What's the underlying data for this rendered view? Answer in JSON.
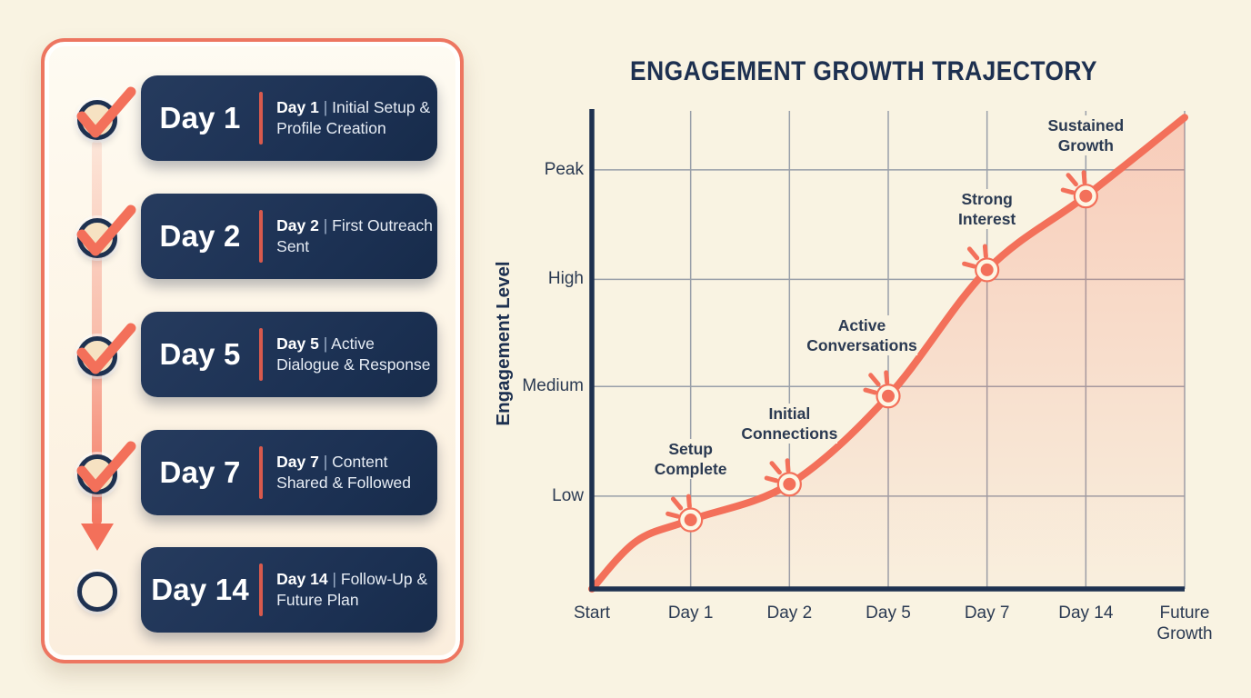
{
  "colors": {
    "background": "#f9f3e2",
    "panel_border": "#ed7661",
    "card_navy": "#1e3455",
    "accent_coral": "#f3705a",
    "divider_red": "#d85a4d",
    "axis_navy": "#1e3150",
    "grid_gray": "#999fa9",
    "text_navy": "#2b3a52",
    "circle_fill_checked": "#f6e2c2"
  },
  "checklist": {
    "separator": "|",
    "items": [
      {
        "day": "Day 1",
        "title": "Initial Setup & Profile Creation",
        "checked": true
      },
      {
        "day": "Day 2",
        "title": "First Outreach Sent",
        "checked": true
      },
      {
        "day": "Day 5",
        "title": "Active Dialogue & Response",
        "checked": true
      },
      {
        "day": "Day 7",
        "title": "Content Shared & Followed",
        "checked": true
      },
      {
        "day": "Day 14",
        "title": "Follow-Up & Future Plan",
        "checked": false
      }
    ]
  },
  "chart_data": {
    "type": "line",
    "title": "ENGAGEMENT GROWTH TRAJECTORY",
    "xlabel": "",
    "ylabel": "Engagement Level",
    "x_categories": [
      "Start",
      "Day 1",
      "Day 2",
      "Day 5",
      "Day 7",
      "Day 14",
      "Future Growth"
    ],
    "y_ticks": [
      {
        "label": "Low",
        "value": 19.5
      },
      {
        "label": "Medium",
        "value": 42.5
      },
      {
        "label": "High",
        "value": 65
      },
      {
        "label": "Peak",
        "value": 88
      }
    ],
    "y_range": [
      0,
      100
    ],
    "grid": true,
    "legend": "none",
    "line_color": "#f3705a",
    "series": [
      {
        "name": "Engagement",
        "points": [
          {
            "x": 0,
            "value": 0
          },
          {
            "x": 0.45,
            "value": 10,
            "curve_helper": true
          },
          {
            "x": 1,
            "value": 14.5,
            "label": "Setup Complete"
          },
          {
            "x": 2,
            "value": 22,
            "label": "Initial Connections"
          },
          {
            "x": 3,
            "value": 40.5,
            "label": "Active Conversations",
            "label_dx": -29
          },
          {
            "x": 4,
            "value": 67,
            "label": "Strong Interest"
          },
          {
            "x": 5,
            "value": 82.5,
            "label": "Sustained Growth"
          },
          {
            "x": 6,
            "value": 99
          }
        ]
      }
    ]
  }
}
